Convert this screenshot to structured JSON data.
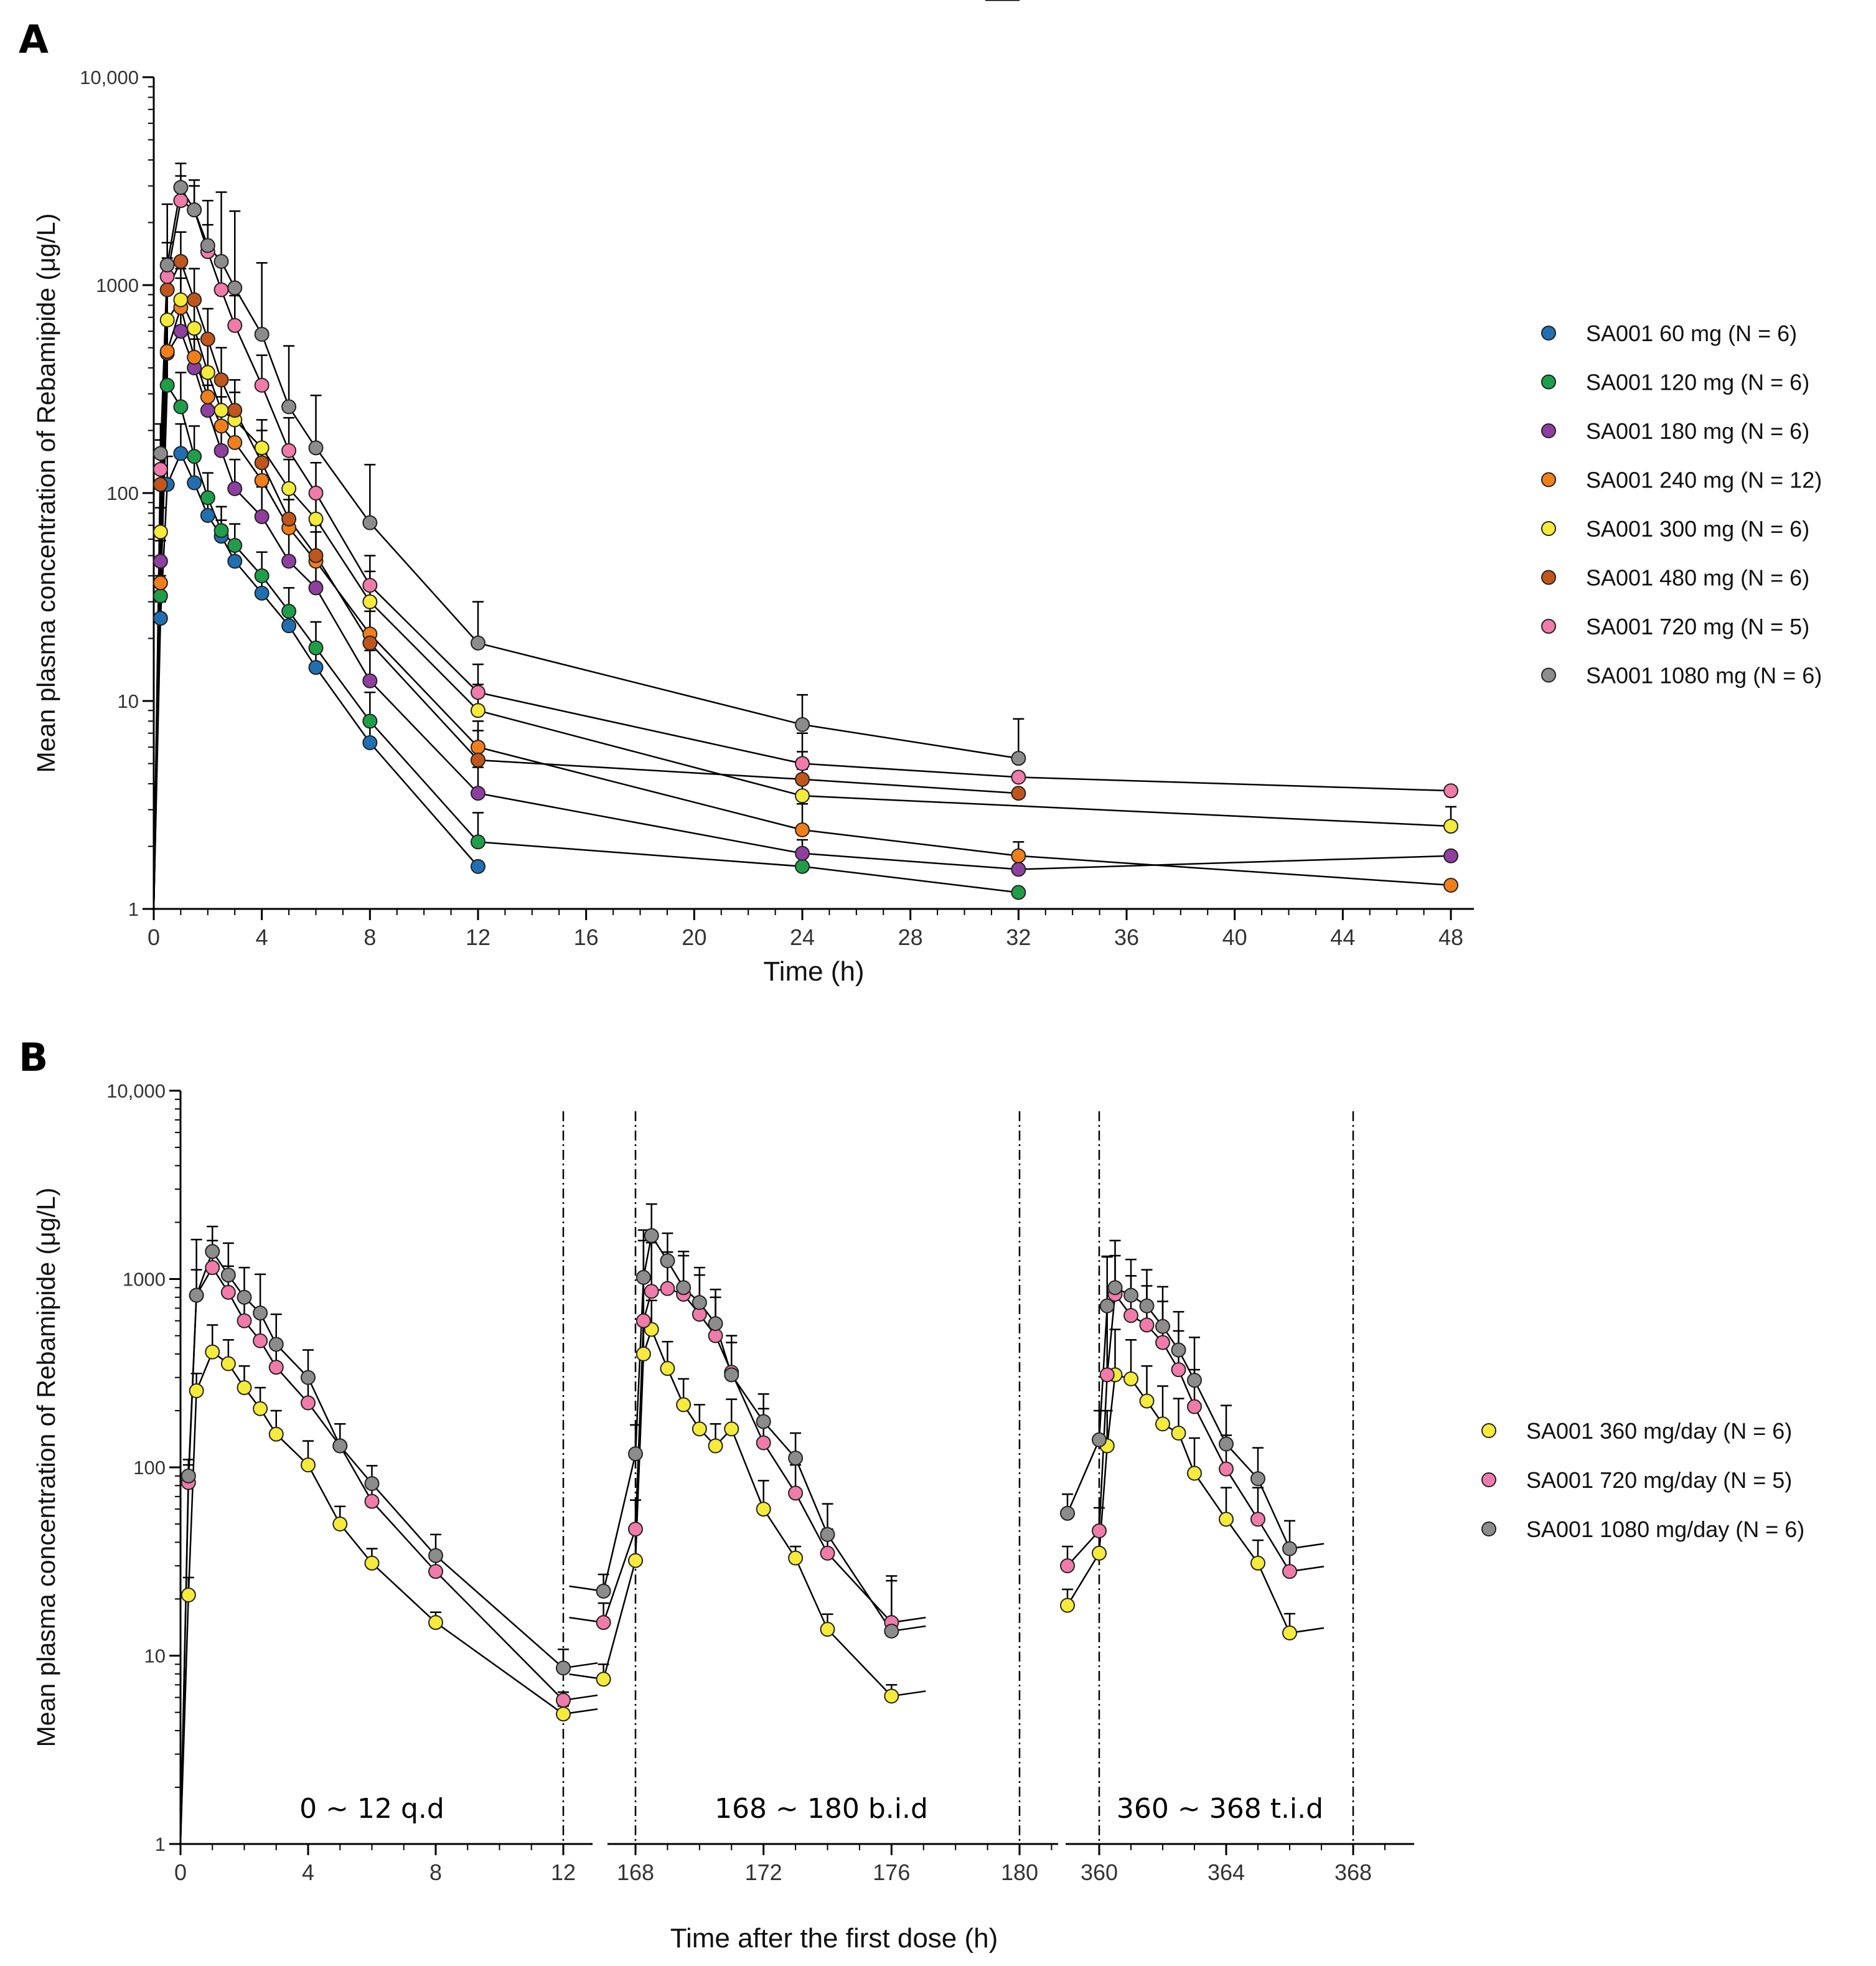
{
  "chart_data": [
    {
      "panel": "A",
      "type": "line",
      "yscale": "log",
      "xlabel": "Time (h)",
      "ylabel": "Mean plasma concentration of Rebamipide (μg/L)",
      "xlim": [
        0,
        49
      ],
      "ylim": [
        1,
        10000
      ],
      "xticks": [
        "0",
        "4",
        "8",
        "12",
        "16",
        "20",
        "24",
        "28",
        "32",
        "36",
        "40",
        "44",
        "48"
      ],
      "yticks": [
        "1",
        "10",
        "100",
        "1000",
        "10,000"
      ],
      "legend_position": "right",
      "series": [
        {
          "name": "SA001 60 mg (N = 6)",
          "color": "#1f6fb2",
          "x": [
            0,
            0.25,
            0.5,
            1,
            1.5,
            2,
            2.5,
            3,
            4,
            5,
            6,
            8,
            12
          ],
          "y": [
            1,
            25,
            110,
            155,
            112,
            78,
            62,
            47,
            33,
            23,
            14.5,
            6.3,
            1.6
          ],
          "err": [
            0,
            5,
            40,
            60,
            40,
            20,
            12,
            10,
            7,
            5,
            3,
            1.5,
            0
          ]
        },
        {
          "name": "SA001 120 mg (N = 6)",
          "color": "#1f9e4a",
          "x": [
            0,
            0.25,
            0.5,
            1,
            1.5,
            2,
            2.5,
            3,
            4,
            5,
            6,
            8,
            12,
            24,
            32
          ],
          "y": [
            1,
            32,
            330,
            260,
            150,
            95,
            66,
            56,
            40,
            27,
            18,
            8,
            2.1,
            1.6,
            1.2
          ],
          "err": [
            0,
            8,
            150,
            120,
            60,
            30,
            20,
            15,
            12,
            8,
            6,
            3,
            0.8,
            0.2,
            0
          ]
        },
        {
          "name": "SA001 180 mg (N = 6)",
          "color": "#8e3fa0",
          "x": [
            0,
            0.25,
            0.5,
            1,
            1.5,
            2,
            2.5,
            3,
            4,
            5,
            6,
            8,
            12,
            24,
            32,
            48
          ],
          "y": [
            1,
            47,
            470,
            600,
            400,
            250,
            160,
            105,
            77,
            47,
            35,
            12.5,
            3.6,
            1.85,
            1.55,
            1.8
          ],
          "err": [
            0,
            12,
            200,
            250,
            150,
            80,
            55,
            40,
            30,
            18,
            14,
            5,
            1.2,
            0.3,
            0.2,
            0
          ]
        },
        {
          "name": "SA001 240 mg (N = 12)",
          "color": "#f07f1b",
          "x": [
            0,
            0.25,
            0.5,
            1,
            1.5,
            2,
            2.5,
            3,
            4,
            5,
            6,
            8,
            12,
            24,
            32,
            48
          ],
          "y": [
            1,
            37,
            480,
            780,
            450,
            290,
            210,
            175,
            115,
            68,
            47,
            21,
            6,
            2.4,
            1.8,
            1.3
          ],
          "err": [
            0,
            10,
            200,
            300,
            180,
            100,
            80,
            60,
            40,
            25,
            18,
            8,
            2,
            0.8,
            0.3,
            0
          ]
        },
        {
          "name": "SA001 300 mg (N = 6)",
          "color": "#f6ea3a",
          "x": [
            0,
            0.25,
            0.5,
            1,
            1.5,
            2,
            2.5,
            3,
            4,
            5,
            6,
            8,
            12,
            24,
            48
          ],
          "y": [
            1,
            65,
            680,
            850,
            620,
            380,
            250,
            225,
            165,
            105,
            75,
            30,
            9,
            3.5,
            2.5
          ],
          "err": [
            0,
            20,
            300,
            350,
            250,
            150,
            100,
            80,
            60,
            40,
            30,
            12,
            3,
            1.2,
            0.6
          ]
        },
        {
          "name": "SA001 480 mg (N = 6)",
          "color": "#c0561c",
          "x": [
            0,
            0.25,
            0.5,
            1,
            1.5,
            2,
            2.5,
            3,
            4,
            5,
            6,
            8,
            12,
            24,
            32
          ],
          "y": [
            1,
            110,
            950,
            1300,
            850,
            550,
            350,
            250,
            140,
            75,
            50,
            19,
            5.2,
            4.2,
            3.6
          ],
          "err": [
            0,
            40,
            400,
            500,
            350,
            220,
            150,
            100,
            60,
            30,
            20,
            8,
            2,
            1.5,
            0
          ]
        },
        {
          "name": "SA001 720 mg (N = 5)",
          "color": "#f07bab",
          "x": [
            0,
            0.25,
            0.5,
            1,
            1.5,
            2,
            2.5,
            3,
            4,
            5,
            6,
            8,
            12,
            24,
            32,
            48
          ],
          "y": [
            1,
            130,
            1100,
            2550,
            2300,
            1450,
            950,
            640,
            330,
            160,
            100,
            36,
            11,
            5,
            4.3,
            3.7
          ],
          "err": [
            0,
            50,
            500,
            800,
            700,
            500,
            350,
            250,
            130,
            70,
            40,
            14,
            4,
            2,
            0,
            0
          ]
        },
        {
          "name": "SA001 1080 mg (N = 6)",
          "color": "#8c8c8c",
          "x": [
            0,
            0.25,
            0.5,
            1,
            1.5,
            2,
            2.5,
            3,
            4,
            5,
            6,
            8,
            12,
            24,
            32
          ],
          "y": [
            1,
            155,
            1250,
            2950,
            2300,
            1550,
            1300,
            970,
            580,
            260,
            165,
            72,
            19,
            7.7,
            5.3
          ],
          "err": [
            0,
            60,
            1200,
            900,
            900,
            1000,
            1500,
            1300,
            700,
            250,
            130,
            65,
            11,
            3,
            2.9
          ]
        }
      ]
    },
    {
      "panel": "B",
      "type": "line",
      "yscale": "log",
      "xlabel": "Time after the first dose (h)",
      "ylabel": "Mean plasma concentration of Rebamipide (μg/L)",
      "ylim": [
        1,
        10000
      ],
      "yticks": [
        "1",
        "10",
        "100",
        "1000",
        "10,000"
      ],
      "legend_position": "right",
      "segments": [
        {
          "label": "0 ~ 12 q.d",
          "xlim": [
            0,
            13
          ],
          "xticks": [
            "0",
            "4",
            "8",
            "12"
          ],
          "dose_lines": [
            12
          ]
        },
        {
          "label": "168 ~ 180 b.i.d",
          "xlim": [
            167,
            181
          ],
          "xticks": [
            "168",
            "172",
            "176",
            "180"
          ],
          "dose_lines": [
            168,
            180
          ]
        },
        {
          "label": "360 ~ 368 t.i.d",
          "xlim": [
            359,
            370
          ],
          "xticks": [
            "360",
            "364",
            "368"
          ],
          "dose_lines": [
            360,
            368
          ]
        }
      ],
      "series": [
        {
          "name": "SA001 360 mg/day (N = 6)",
          "color": "#f6ea3a",
          "x": [
            0,
            0.25,
            0.5,
            1,
            1.5,
            2,
            2.5,
            3,
            4,
            5,
            6,
            8,
            12,
            167,
            168,
            168.25,
            168.5,
            169,
            169.5,
            170,
            170.5,
            171,
            172,
            173,
            174,
            176,
            180,
            359,
            360,
            360.25,
            360.5,
            361,
            361.5,
            362,
            362.5,
            363,
            364,
            365,
            366,
            368
          ],
          "y": [
            1,
            21,
            255,
            410,
            355,
            265,
            205,
            150,
            103,
            50,
            31,
            15,
            4.9,
            7.5,
            32,
            400,
            540,
            335,
            215,
            160,
            130,
            160,
            60,
            33,
            13.8,
            6.1,
            null,
            18.5,
            35,
            130,
            310,
            295,
            225,
            170,
            152,
            93,
            53,
            31,
            13.2,
            null
          ],
          "err": [
            0,
            5,
            60,
            160,
            120,
            80,
            60,
            50,
            35,
            12,
            6,
            2,
            0.5,
            1.5,
            15,
            200,
            230,
            130,
            80,
            55,
            40,
            70,
            25,
            5,
            2.8,
            0.9,
            null,
            4,
            12,
            70,
            230,
            180,
            120,
            100,
            80,
            50,
            25,
            10,
            3.5,
            null
          ]
        },
        {
          "name": "SA001 720 mg/day (N = 5)",
          "color": "#f07bab",
          "x": [
            0,
            0.25,
            0.5,
            1,
            1.5,
            2,
            2.5,
            3,
            4,
            5,
            6,
            8,
            12,
            167,
            168,
            168.25,
            168.5,
            169,
            169.5,
            170,
            170.5,
            171,
            172,
            173,
            174,
            176,
            180,
            359,
            360,
            360.25,
            360.5,
            361,
            361.5,
            362,
            362.5,
            363,
            364,
            365,
            366,
            368
          ],
          "y": [
            1,
            83,
            820,
            1150,
            850,
            600,
            470,
            340,
            220,
            130,
            66,
            28,
            5.8,
            15,
            47,
            600,
            860,
            890,
            830,
            650,
            500,
            320,
            135,
            73,
            35,
            15,
            null,
            30,
            46,
            310,
            830,
            640,
            570,
            460,
            330,
            210,
            98,
            53,
            28,
            null
          ],
          "err": [
            0,
            20,
            300,
            450,
            320,
            220,
            180,
            130,
            80,
            40,
            15,
            8,
            0.6,
            4,
            20,
            1000,
            700,
            500,
            500,
            400,
            300,
            180,
            70,
            30,
            12,
            10,
            null,
            8,
            15,
            1000,
            500,
            400,
            350,
            300,
            200,
            120,
            50,
            25,
            8,
            null
          ]
        },
        {
          "name": "SA001 1080 mg/day (N = 6)",
          "color": "#8c8c8c",
          "x": [
            0,
            0.25,
            0.5,
            1,
            1.5,
            2,
            2.5,
            3,
            4,
            5,
            6,
            8,
            12,
            167,
            168,
            168.25,
            168.5,
            169,
            169.5,
            170,
            170.5,
            171,
            172,
            173,
            174,
            176,
            180,
            359,
            360,
            360.25,
            360.5,
            361,
            361.5,
            362,
            362.5,
            363,
            364,
            365,
            366,
            368
          ],
          "y": [
            1,
            90,
            820,
            1400,
            1050,
            800,
            660,
            450,
            300,
            130,
            82,
            34,
            8.6,
            22,
            118,
            1020,
            1700,
            1250,
            900,
            750,
            580,
            310,
            175,
            112,
            44,
            13.5,
            null,
            57,
            140,
            720,
            900,
            820,
            720,
            560,
            420,
            290,
            133,
            87,
            37,
            null
          ],
          "err": [
            0,
            20,
            800,
            500,
            500,
            350,
            400,
            200,
            120,
            40,
            20,
            10,
            2.2,
            5,
            50,
            800,
            800,
            500,
            500,
            400,
            300,
            150,
            70,
            40,
            20,
            13,
            null,
            15,
            60,
            600,
            700,
            450,
            400,
            350,
            250,
            200,
            80,
            40,
            15,
            null
          ]
        }
      ]
    }
  ]
}
